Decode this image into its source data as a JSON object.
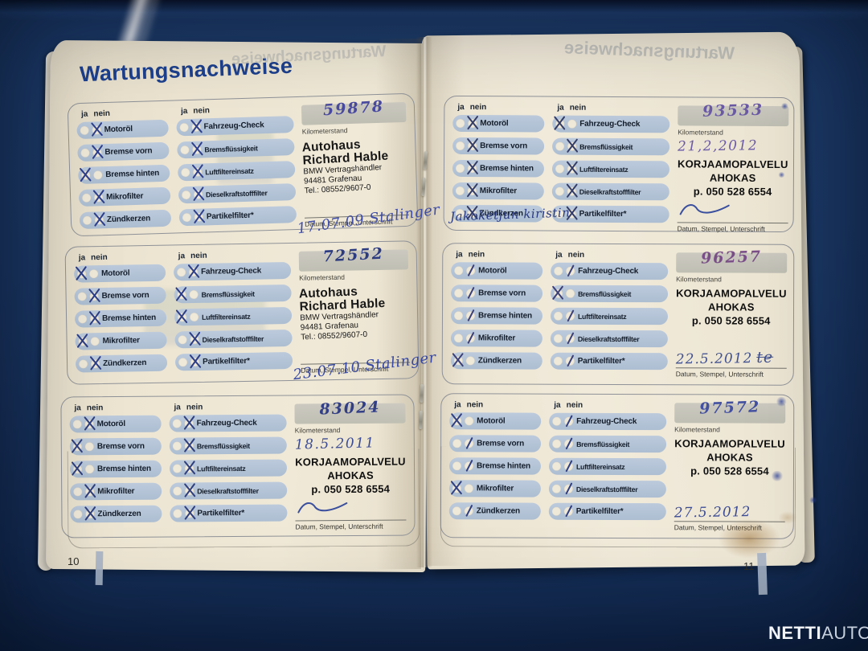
{
  "photo": {
    "left_page_number": "10",
    "right_page_number": "11",
    "watermark": {
      "bold": "NETTI",
      "light": "AUTO"
    }
  },
  "booklet": {
    "title": "Wartungsnachweise",
    "ghost_title": "Wartungsnachweise",
    "labels": {
      "ja": "ja",
      "nein": "nein",
      "kilometerstand": "Kilometerstand",
      "caption": "Datum, Stempel, Unterschrift"
    },
    "checklist_left": [
      "Motoröl",
      "Bremse vorn",
      "Bremse hinten",
      "Mikrofilter",
      "Zündkerzen"
    ],
    "checklist_right": [
      "Fahrzeug-Check",
      "Bremsflüssigkeit",
      "Luftfiltereinsatz",
      "Dieselkraftstofffilter",
      "Partikelfilter*"
    ],
    "stamps": {
      "hable": {
        "big": [
          "Autohaus",
          "Richard Hable"
        ],
        "small": [
          "BMW Vertragshändler",
          "94481 Grafenau",
          "Tel.: 08552/9607-0"
        ]
      },
      "ahokas": [
        "KORJAAMOPALVELU",
        "AHOKAS",
        "p. 050 528 6554"
      ]
    },
    "handwritten_note": "Jakoketjun kiristin",
    "records": [
      {
        "pos": "b1",
        "km": "59878",
        "km_ink": "#4a4aa0",
        "stamp": "hable",
        "date": "17.07.09 Stalinger",
        "date_ink": "#3f4da6",
        "date_style": "overlap",
        "mark_ink": "#2e3f8c",
        "signature": false,
        "sig_text": "",
        "smudges": "",
        "left": [
          {
            "c": "nein",
            "m": "x"
          },
          {
            "c": "nein",
            "m": "x"
          },
          {
            "c": "ja",
            "m": "x"
          },
          {
            "c": "nein",
            "m": "x"
          },
          {
            "c": "nein",
            "m": "x"
          }
        ],
        "right": [
          {
            "c": "nein",
            "m": "x"
          },
          {
            "c": "nein",
            "m": "x"
          },
          {
            "c": "nein",
            "m": "x"
          },
          {
            "c": "nein",
            "m": "x"
          },
          {
            "c": "nein",
            "m": "x"
          }
        ]
      },
      {
        "pos": "b2",
        "km": "72552",
        "km_ink": "#2c3a80",
        "stamp": "hable",
        "date": "23.07.10 Stalinger",
        "date_ink": "#3547a2",
        "date_style": "overlap",
        "mark_ink": "#2c3d85",
        "signature": false,
        "sig_text": "",
        "smudges": "",
        "left": [
          {
            "c": "ja",
            "m": "x"
          },
          {
            "c": "nein",
            "m": "x"
          },
          {
            "c": "nein",
            "m": "x"
          },
          {
            "c": "ja",
            "m": "x"
          },
          {
            "c": "nein",
            "m": "x"
          }
        ],
        "right": [
          {
            "c": "nein",
            "m": "x"
          },
          {
            "c": "ja",
            "m": "x"
          },
          {
            "c": "ja",
            "m": "x"
          },
          {
            "c": "nein",
            "m": "x"
          },
          {
            "c": "nein",
            "m": "x"
          }
        ]
      },
      {
        "pos": "b3",
        "km": "83024",
        "km_ink": "#333f85",
        "stamp": "ahokas",
        "date": "18.5.2011",
        "date_ink": "#3c4c94",
        "date_style": "after_km",
        "mark_ink": "#2f3f7d",
        "signature": true,
        "sig_text": "",
        "smudges": "",
        "left": [
          {
            "c": "nein",
            "m": "x"
          },
          {
            "c": "ja",
            "m": "x"
          },
          {
            "c": "ja",
            "m": "x"
          },
          {
            "c": "nein",
            "m": "x"
          },
          {
            "c": "nein",
            "m": "x"
          }
        ],
        "right": [
          {
            "c": "nein",
            "m": "x"
          },
          {
            "c": "nein",
            "m": "x"
          },
          {
            "c": "nein",
            "m": "x"
          },
          {
            "c": "nein",
            "m": "x"
          },
          {
            "c": "nein",
            "m": "x"
          }
        ]
      },
      {
        "pos": "b4",
        "km": "93533",
        "km_ink": "#6b5aa4",
        "stamp": "ahokas",
        "date": "21,2,2012",
        "date_ink": "#6b5aa4",
        "date_style": "after_km",
        "mark_ink": "#333c66",
        "signature": true,
        "sig_text": "",
        "smudges": "light",
        "left": [
          {
            "c": "nein",
            "m": "x"
          },
          {
            "c": "nein",
            "m": "x"
          },
          {
            "c": "nein",
            "m": "x"
          },
          {
            "c": "nein",
            "m": "x"
          },
          {
            "c": "nein",
            "m": "x"
          }
        ],
        "right": [
          {
            "c": "ja",
            "m": "x"
          },
          {
            "c": "nein",
            "m": "x"
          },
          {
            "c": "nein",
            "m": "x"
          },
          {
            "c": "nein",
            "m": "x"
          },
          {
            "c": "nein",
            "m": "x"
          }
        ]
      },
      {
        "pos": "b5",
        "km": "96257",
        "km_ink": "#7a4f88",
        "stamp": "ahokas",
        "date": "22.5.2012",
        "date_ink": "#41518f",
        "date_style": "above_caption",
        "mark_ink": "#3a3f77",
        "signature": false,
        "sig_text": "te",
        "smudges": "",
        "left": [
          {
            "c": "nein",
            "m": "slash"
          },
          {
            "c": "nein",
            "m": "slash"
          },
          {
            "c": "nein",
            "m": "slash"
          },
          {
            "c": "nein",
            "m": "slash"
          },
          {
            "c": "ja",
            "m": "x"
          }
        ],
        "right": [
          {
            "c": "nein",
            "m": "slash"
          },
          {
            "c": "ja",
            "m": "x"
          },
          {
            "c": "nein",
            "m": "slash"
          },
          {
            "c": "nein",
            "m": "slash"
          },
          {
            "c": "nein",
            "m": "slash"
          }
        ]
      },
      {
        "pos": "b6",
        "km": "97572",
        "km_ink": "#4350a0",
        "stamp": "ahokas",
        "date": "27.5.2012",
        "date_ink": "#3c4c94",
        "date_style": "above_caption",
        "mark_ink": "#2f3e80",
        "signature": false,
        "sig_text": "",
        "smudges": "strong",
        "left": [
          {
            "c": "ja",
            "m": "x"
          },
          {
            "c": "nein",
            "m": "slash"
          },
          {
            "c": "nein",
            "m": "slash"
          },
          {
            "c": "ja",
            "m": "x"
          },
          {
            "c": "nein",
            "m": "slash"
          }
        ],
        "right": [
          {
            "c": "nein",
            "m": "slash"
          },
          {
            "c": "nein",
            "m": "slash"
          },
          {
            "c": "nein",
            "m": "slash"
          },
          {
            "c": "nein",
            "m": "slash"
          },
          {
            "c": "nein",
            "m": "slash"
          }
        ]
      }
    ]
  }
}
